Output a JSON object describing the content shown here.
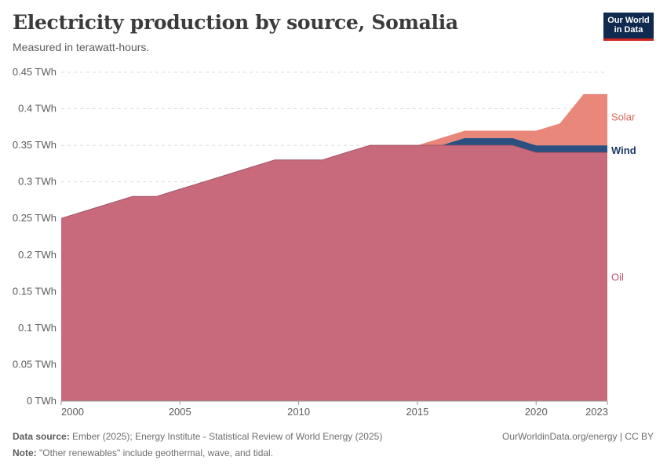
{
  "header": {
    "title": "Electricity production by source, Somalia",
    "subtitle": "Measured in terawatt-hours."
  },
  "logo": {
    "line1": "Our World",
    "line2": "in Data"
  },
  "footer": {
    "source_label": "Data source:",
    "source_text": "Ember (2025); Energy Institute - Statistical Review of World Energy (2025)",
    "note_label": "Note:",
    "note_text": "\"Other renewables\" include geothermal, wave, and tidal.",
    "credit": "OurWorldinData.org/energy | CC BY"
  },
  "colors": {
    "oil": "#c96a7c",
    "oil_line": "#a0566a",
    "wind": "#2b4f7e",
    "solar": "#e8877a",
    "solar_label": "#d9675a",
    "wind_label": "#1d3b66",
    "oil_label": "#c0566b"
  },
  "chart_data": {
    "type": "area",
    "stacked": true,
    "title": "Electricity production by source, Somalia",
    "ylim": [
      0,
      0.45
    ],
    "yticks": [
      0,
      0.05,
      0.1,
      0.15,
      0.2,
      0.25,
      0.3,
      0.35,
      0.4,
      0.45
    ],
    "ytick_labels": [
      "0 TWh",
      "0.05 TWh",
      "0.1 TWh",
      "0.15 TWh",
      "0.2 TWh",
      "0.25 TWh",
      "0.3 TWh",
      "0.35 TWh",
      "0.4 TWh",
      "0.45 TWh"
    ],
    "xlim": [
      2000,
      2023
    ],
    "xticks": [
      2000,
      2005,
      2010,
      2015,
      2020,
      2023
    ],
    "xtick_labels": [
      "2000",
      "2005",
      "2010",
      "2015",
      "2020",
      "2023"
    ],
    "grid": "horizontal",
    "legend": "inline-right",
    "x": [
      2000,
      2001,
      2002,
      2003,
      2004,
      2005,
      2006,
      2007,
      2008,
      2009,
      2010,
      2011,
      2012,
      2013,
      2014,
      2015,
      2016,
      2017,
      2018,
      2019,
      2020,
      2021,
      2022,
      2023
    ],
    "series": [
      {
        "name": "Oil",
        "values": [
          0.25,
          0.26,
          0.27,
          0.28,
          0.28,
          0.29,
          0.3,
          0.31,
          0.32,
          0.33,
          0.33,
          0.33,
          0.34,
          0.35,
          0.35,
          0.35,
          0.35,
          0.35,
          0.35,
          0.35,
          0.34,
          0.34,
          0.34,
          0.34
        ]
      },
      {
        "name": "Wind",
        "values": [
          0,
          0,
          0,
          0,
          0,
          0,
          0,
          0,
          0,
          0,
          0,
          0,
          0,
          0,
          0,
          0,
          0,
          0.01,
          0.01,
          0.01,
          0.01,
          0.01,
          0.01,
          0.01
        ]
      },
      {
        "name": "Solar",
        "values": [
          0,
          0,
          0,
          0,
          0,
          0,
          0,
          0,
          0,
          0,
          0,
          0,
          0,
          0,
          0,
          0,
          0.01,
          0.01,
          0.01,
          0.01,
          0.02,
          0.03,
          0.07,
          0.07
        ]
      }
    ]
  }
}
